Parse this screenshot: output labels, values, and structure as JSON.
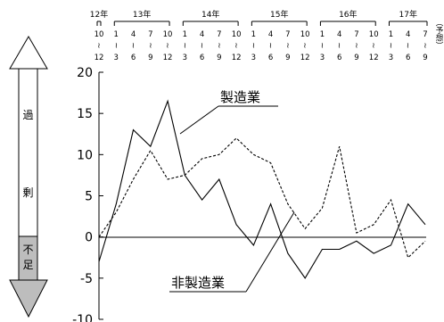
{
  "chart_data": {
    "type": "line",
    "x": [
      "12年10~12",
      "13年1~3",
      "13年4~6",
      "13年7~9",
      "13年10~12",
      "14年1~3",
      "14年4~6",
      "14年7~9",
      "14年10~12",
      "15年1~3",
      "15年4~6",
      "15年7~9",
      "15年10~12",
      "16年1~3",
      "16年4~6",
      "16年7~9",
      "16年10~12",
      "17年1~3",
      "17年4~6",
      "17年7~9"
    ],
    "series": [
      {
        "name": "製造業",
        "style": "solid",
        "values": [
          -3,
          4,
          13,
          11,
          16.5,
          7.5,
          4.5,
          7,
          1.5,
          -1,
          4,
          -2,
          -5,
          -1.5,
          -1.5,
          -0.5,
          -2,
          -1,
          4,
          1.5
        ]
      },
      {
        "name": "非製造業",
        "style": "dashed",
        "values": [
          0,
          3,
          7,
          10.5,
          7,
          7.5,
          9.5,
          10,
          12,
          10,
          9,
          4,
          1,
          3.5,
          11,
          0.5,
          1.5,
          4.5,
          -2.5,
          -0.5
        ]
      }
    ],
    "ylim": [
      -10,
      20
    ],
    "yticks": [
      "20",
      "15",
      "10",
      "5",
      "0",
      "-5",
      "-10"
    ],
    "years": [
      {
        "label": "12年",
        "start": 0,
        "end": 0
      },
      {
        "label": "13年",
        "start": 1,
        "end": 4
      },
      {
        "label": "14年",
        "start": 5,
        "end": 8
      },
      {
        "label": "15年",
        "start": 9,
        "end": 12
      },
      {
        "label": "16年",
        "start": 13,
        "end": 16
      },
      {
        "label": "17年",
        "start": 17,
        "end": 19
      }
    ],
    "quarter_top": [
      "10",
      "1",
      "4",
      "7",
      "10",
      "1",
      "4",
      "7",
      "10",
      "1",
      "4",
      "7",
      "10",
      "1",
      "4",
      "7",
      "10",
      "1",
      "4",
      "7"
    ],
    "quarter_bottom": [
      "12",
      "3",
      "6",
      "9",
      "12",
      "3",
      "6",
      "9",
      "12",
      "3",
      "6",
      "9",
      "12",
      "3",
      "6",
      "9",
      "12",
      "3",
      "6",
      "9"
    ],
    "forecast_note": "（予想）",
    "grid": false
  },
  "arrow": {
    "excess_chars": [
      "過",
      "剰"
    ],
    "shortage_chars": [
      "不",
      "足"
    ]
  },
  "colors": {
    "line": "#000000",
    "arrow_fill_bottom": "#bdbdbd",
    "background": "#ffffff"
  }
}
